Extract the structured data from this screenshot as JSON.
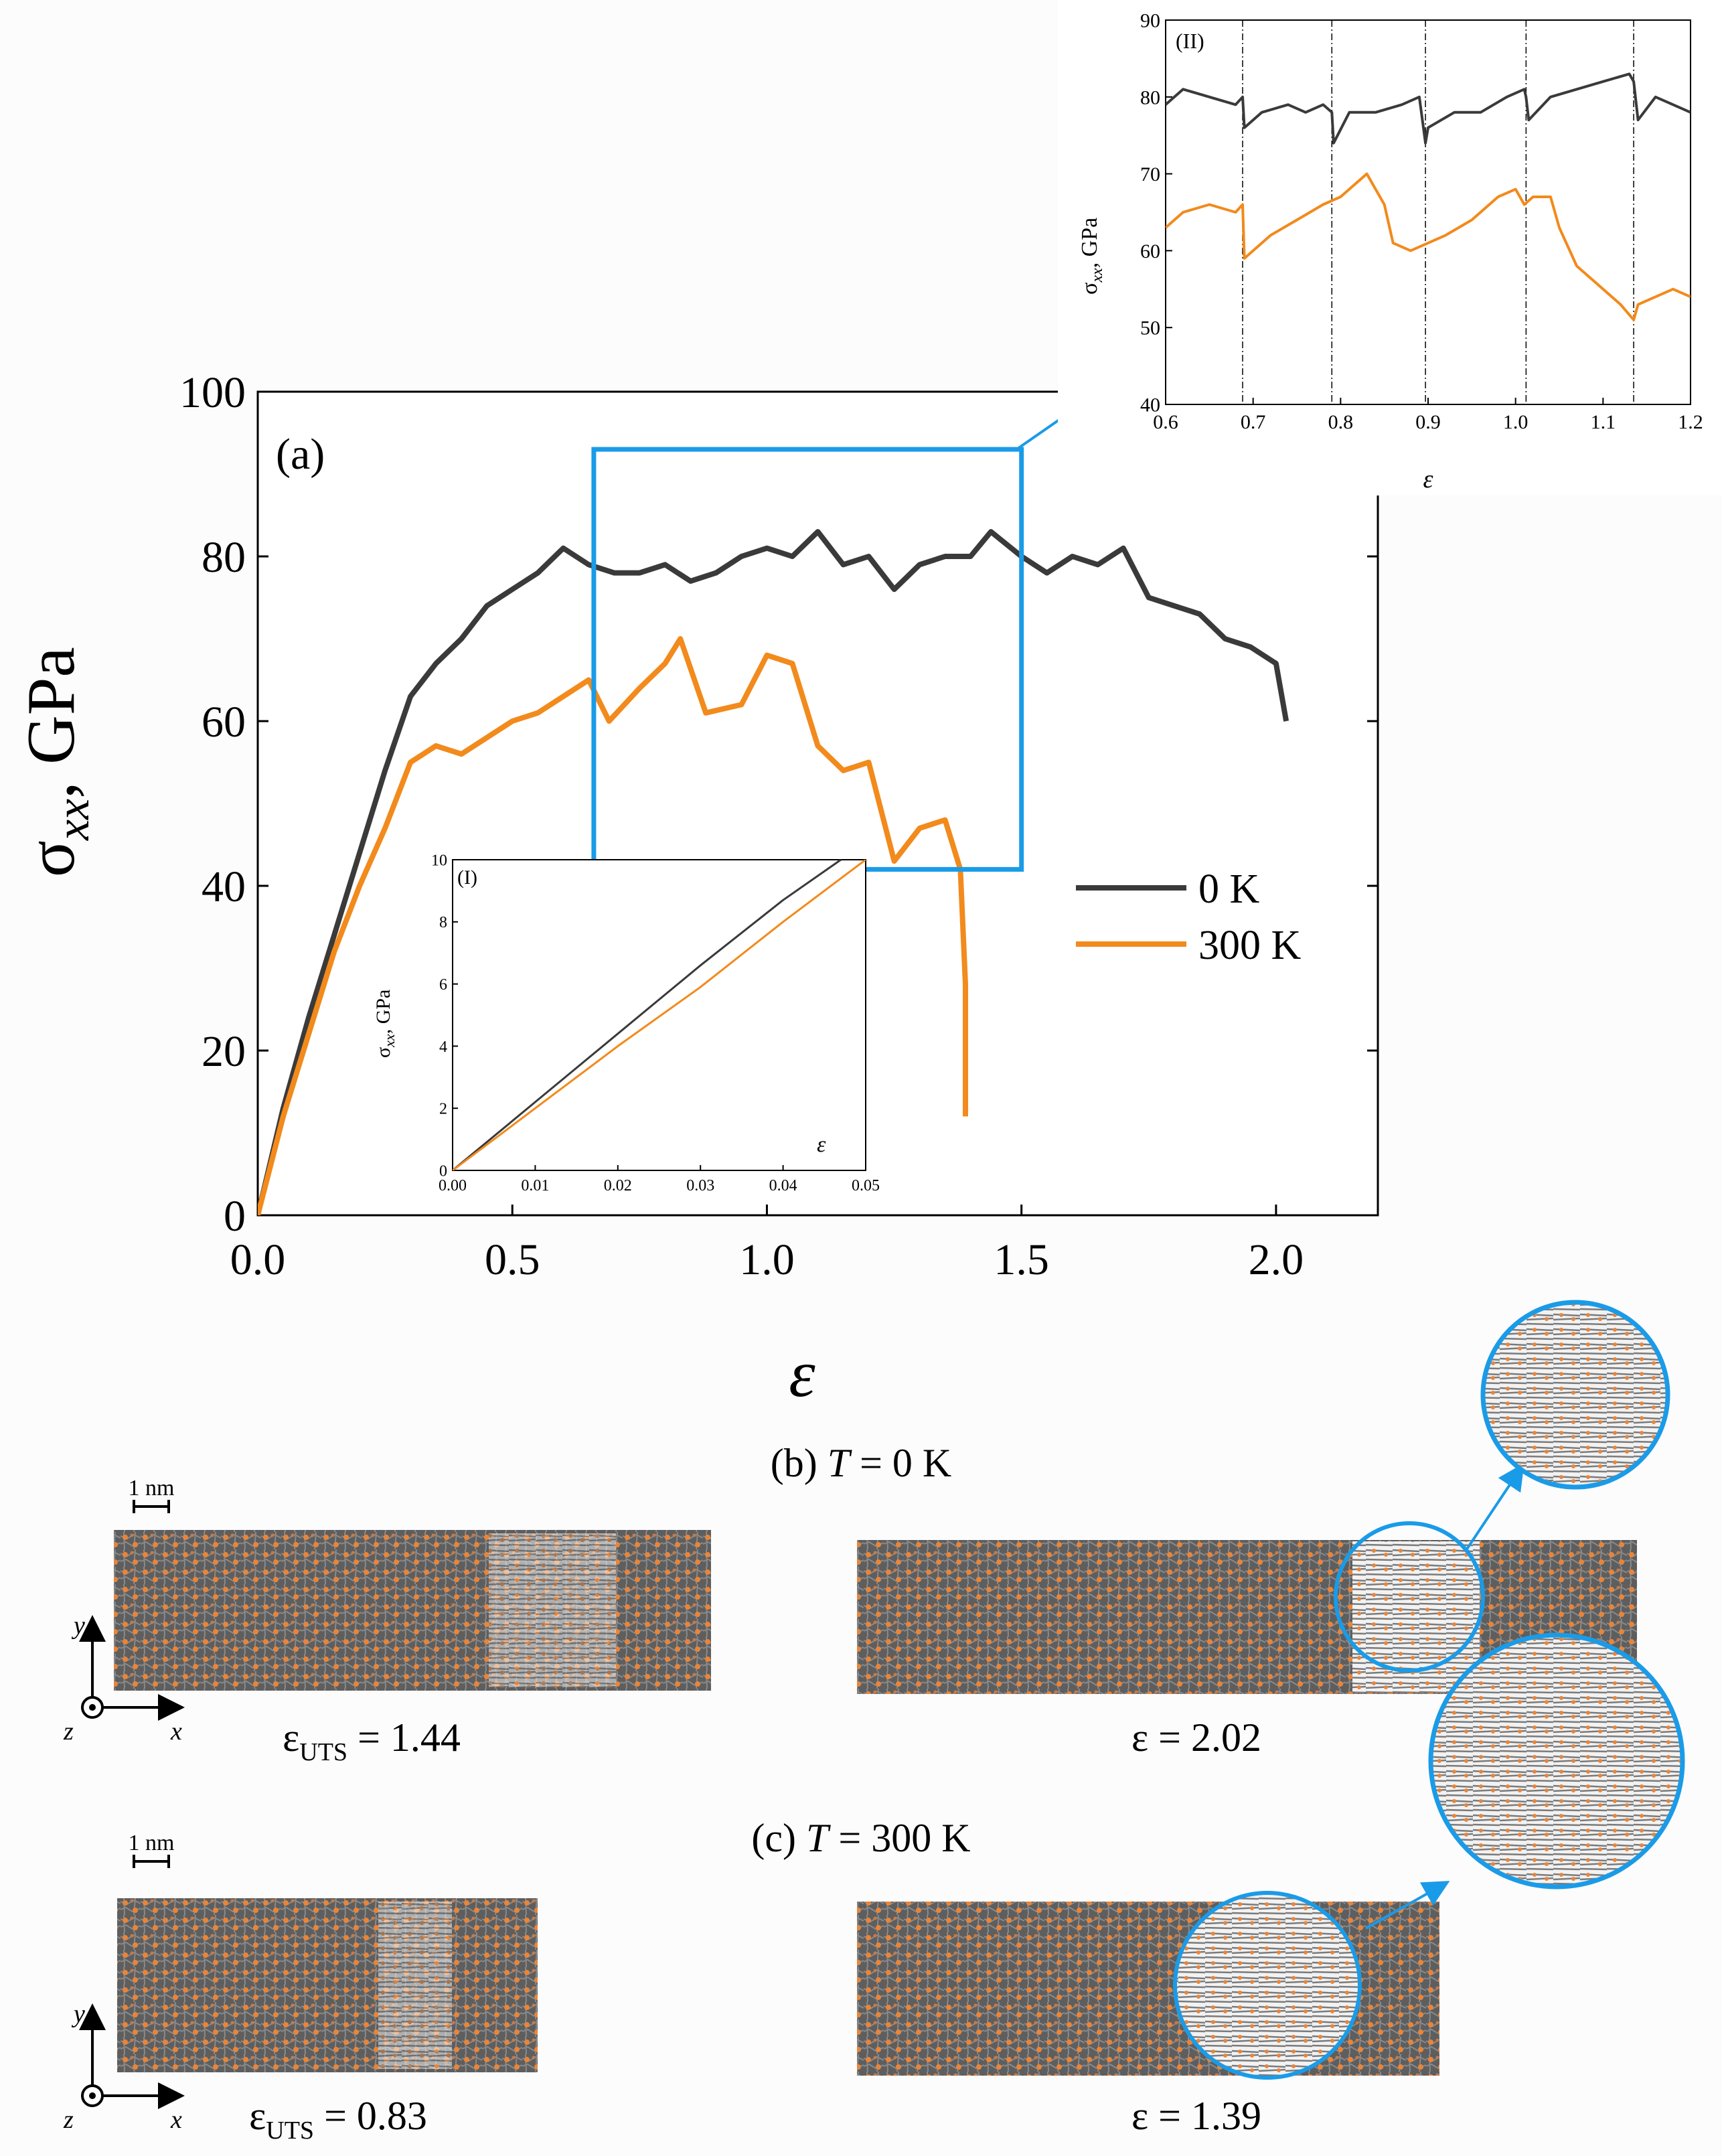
{
  "colors": {
    "cold": "#3a3a3a",
    "hot": "#f28a1c",
    "accent": "#1a9be8",
    "grid": "#000000"
  },
  "chart_data": [
    {
      "id": "main",
      "type": "line",
      "panel_label": "(a)",
      "ylabel_main": "σ",
      "ylabel_sub": "xx",
      "ylabel_unit": ", GPa",
      "xlabel": "ε",
      "xlim": [
        0,
        2.2
      ],
      "ylim": [
        0,
        100
      ],
      "xticks": [
        "0.0",
        "0.5",
        "1.0",
        "1.5",
        "2.0"
      ],
      "yticks": [
        "0",
        "20",
        "40",
        "60",
        "80",
        "100"
      ],
      "zoom_box": {
        "x": [
          0.66,
          1.5
        ],
        "y": [
          42,
          93
        ]
      },
      "legend": [
        "0 K",
        "300 K"
      ],
      "series": [
        {
          "name": "0 K",
          "x": [
            0,
            0.05,
            0.1,
            0.15,
            0.2,
            0.25,
            0.3,
            0.35,
            0.4,
            0.45,
            0.5,
            0.55,
            0.6,
            0.65,
            0.7,
            0.75,
            0.8,
            0.85,
            0.9,
            0.95,
            1.0,
            1.05,
            1.1,
            1.15,
            1.2,
            1.25,
            1.3,
            1.35,
            1.4,
            1.44,
            1.5,
            1.55,
            1.6,
            1.65,
            1.7,
            1.75,
            1.8,
            1.85,
            1.9,
            1.95,
            2.0,
            2.02
          ],
          "y": [
            0,
            13,
            24,
            34,
            44,
            54,
            63,
            67,
            70,
            74,
            76,
            78,
            81,
            79,
            78,
            78,
            79,
            77,
            78,
            80,
            81,
            80,
            83,
            79,
            80,
            76,
            79,
            80,
            80,
            83,
            80,
            78,
            80,
            79,
            81,
            75,
            74,
            73,
            70,
            69,
            67,
            60
          ]
        },
        {
          "name": "300 K",
          "x": [
            0,
            0.05,
            0.1,
            0.15,
            0.2,
            0.25,
            0.3,
            0.35,
            0.4,
            0.45,
            0.5,
            0.55,
            0.6,
            0.65,
            0.69,
            0.75,
            0.8,
            0.83,
            0.88,
            0.95,
            1.0,
            1.05,
            1.1,
            1.15,
            1.2,
            1.25,
            1.3,
            1.35,
            1.38,
            1.39,
            1.39
          ],
          "y": [
            0,
            12,
            22,
            32,
            40,
            47,
            55,
            57,
            56,
            58,
            60,
            61,
            63,
            65,
            60,
            64,
            67,
            70,
            61,
            62,
            68,
            67,
            57,
            54,
            55,
            43,
            47,
            48,
            42,
            28,
            12
          ]
        }
      ]
    },
    {
      "id": "inset_I",
      "type": "line",
      "panel_label": "(I)",
      "ylabel": "σxx, GPa",
      "xlabel": "ε",
      "xlim": [
        0,
        0.05
      ],
      "ylim": [
        0,
        10
      ],
      "xticks": [
        "0.00",
        "0.01",
        "0.02",
        "0.03",
        "0.04",
        "0.05"
      ],
      "yticks": [
        "0",
        "2",
        "4",
        "6",
        "8",
        "10"
      ],
      "series": [
        {
          "name": "0 K",
          "x": [
            0,
            0.01,
            0.02,
            0.03,
            0.04,
            0.047
          ],
          "y": [
            0,
            2.2,
            4.4,
            6.6,
            8.7,
            10
          ]
        },
        {
          "name": "300 K",
          "x": [
            0,
            0.01,
            0.02,
            0.03,
            0.04,
            0.05
          ],
          "y": [
            0,
            2.0,
            4.0,
            5.9,
            8.0,
            10
          ]
        }
      ]
    },
    {
      "id": "inset_II",
      "type": "line",
      "panel_label": "(II)",
      "ylabel": "σxx, GPa",
      "xlabel": "ε",
      "xlim": [
        0.6,
        1.2
      ],
      "ylim": [
        40,
        90
      ],
      "xticks": [
        "0.6",
        "0.7",
        "0.8",
        "0.9",
        "1.0",
        "1.1",
        "1.2"
      ],
      "yticks": [
        "40",
        "50",
        "60",
        "70",
        "80",
        "90"
      ],
      "vlines": [
        0.688,
        0.79,
        0.897,
        1.012,
        1.135
      ],
      "series": [
        {
          "name": "0 K",
          "x": [
            0.6,
            0.62,
            0.65,
            0.68,
            0.688,
            0.69,
            0.71,
            0.74,
            0.76,
            0.78,
            0.79,
            0.792,
            0.81,
            0.84,
            0.87,
            0.89,
            0.897,
            0.9,
            0.93,
            0.96,
            0.99,
            1.01,
            1.012,
            1.015,
            1.04,
            1.07,
            1.1,
            1.13,
            1.135,
            1.14,
            1.16,
            1.18,
            1.2
          ],
          "y": [
            79,
            81,
            80,
            79,
            80,
            76,
            78,
            79,
            78,
            79,
            78,
            74,
            78,
            78,
            79,
            80,
            74,
            76,
            78,
            78,
            80,
            81,
            80,
            77,
            80,
            81,
            82,
            83,
            82,
            77,
            80,
            79,
            78
          ]
        },
        {
          "name": "300 K",
          "x": [
            0.6,
            0.62,
            0.65,
            0.68,
            0.688,
            0.69,
            0.72,
            0.75,
            0.78,
            0.8,
            0.83,
            0.85,
            0.86,
            0.88,
            0.9,
            0.92,
            0.95,
            0.98,
            1.0,
            1.01,
            1.02,
            1.04,
            1.05,
            1.07,
            1.1,
            1.12,
            1.135,
            1.14,
            1.16,
            1.18,
            1.2
          ],
          "y": [
            63,
            65,
            66,
            65,
            66,
            59,
            62,
            64,
            66,
            67,
            70,
            66,
            61,
            60,
            61,
            62,
            64,
            67,
            68,
            66,
            67,
            67,
            63,
            58,
            55,
            53,
            51,
            53,
            54,
            55,
            54
          ]
        }
      ]
    }
  ],
  "panel_b": {
    "title_prefix": "(b) ",
    "title_T": "T",
    "title_suffix": " = 0 K",
    "scale_label": "1 nm",
    "left_label_main": "ε",
    "left_label_sub": "UTS",
    "left_label_value": " = 1.44",
    "right_label": "ε = 2.02"
  },
  "panel_c": {
    "title_prefix": "(c) ",
    "title_T": "T",
    "title_suffix": " = 300 K",
    "scale_label": "1 nm",
    "left_label_main": "ε",
    "left_label_sub": "UTS",
    "left_label_value": " = 0.83",
    "right_label": "ε = 1.39"
  },
  "axes_labels": {
    "x": "x",
    "y": "y",
    "z": "z"
  }
}
